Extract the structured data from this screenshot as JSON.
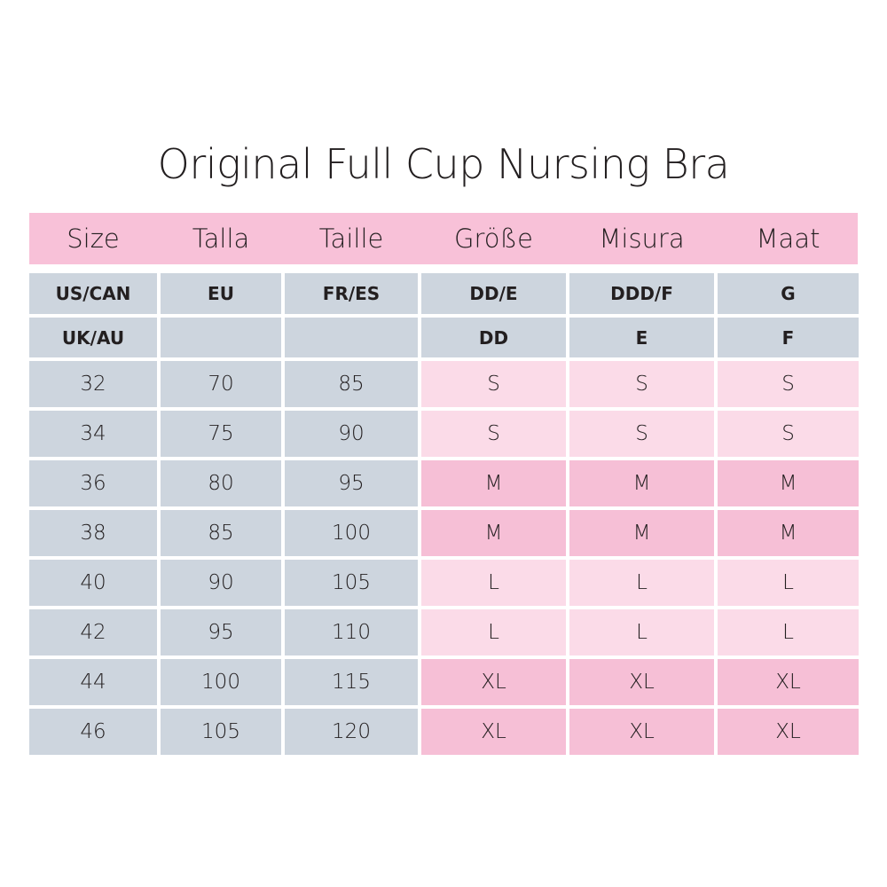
{
  "title": "Original Full Cup Nursing Bra",
  "header": [
    "Size",
    "Talla",
    "Taille",
    "Größe",
    "Misura",
    "Maat"
  ],
  "region_rows": [
    [
      "US/CAN",
      "EU",
      "FR/ES",
      "DD/E",
      "DDD/F",
      "G"
    ],
    [
      "UK/AU",
      "",
      "",
      "DD",
      "E",
      "F"
    ]
  ],
  "rows": [
    {
      "cells": [
        "32",
        "70",
        "85",
        "S",
        "S",
        "S"
      ],
      "shade": "light"
    },
    {
      "cells": [
        "34",
        "75",
        "90",
        "S",
        "S",
        "S"
      ],
      "shade": "light"
    },
    {
      "cells": [
        "36",
        "80",
        "95",
        "M",
        "M",
        "M"
      ],
      "shade": "dark"
    },
    {
      "cells": [
        "38",
        "85",
        "100",
        "M",
        "M",
        "M"
      ],
      "shade": "dark"
    },
    {
      "cells": [
        "40",
        "90",
        "105",
        "L",
        "L",
        "L"
      ],
      "shade": "light"
    },
    {
      "cells": [
        "42",
        "95",
        "110",
        "L",
        "L",
        "L"
      ],
      "shade": "light"
    },
    {
      "cells": [
        "44",
        "100",
        "115",
        "XL",
        "XL",
        "XL"
      ],
      "shade": "dark"
    },
    {
      "cells": [
        "46",
        "105",
        "120",
        "XL",
        "XL",
        "XL"
      ],
      "shade": "dark"
    }
  ],
  "colors": {
    "header_pink": "#f8c1d8",
    "gray": "#cdd5de",
    "light_pink": "#fbdbe8",
    "dark_pink": "#f6bfd6"
  }
}
